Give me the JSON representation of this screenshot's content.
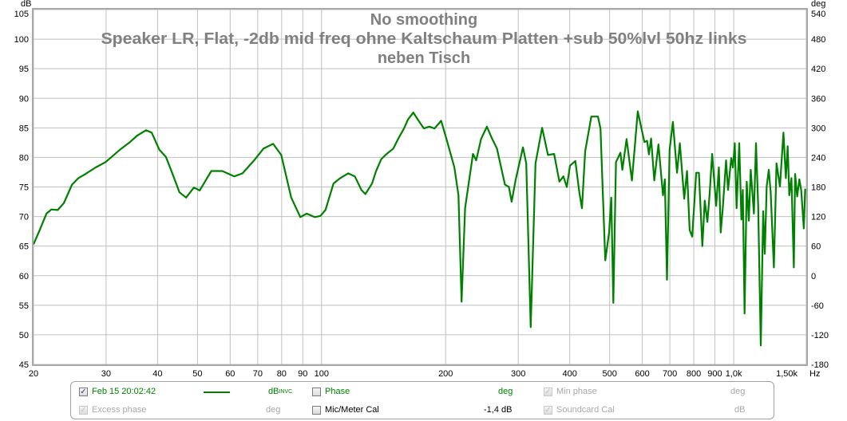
{
  "chart_data": {
    "type": "line",
    "title": [
      "No smoothing",
      "Speaker LR, Flat, -2db mid freq ohne Kaltschaum Platten +sub 50%lvl 50hz links",
      "neben Tisch"
    ],
    "xlabel": "Hz",
    "ylabel": "dB",
    "y2label": "deg",
    "xscale": "log",
    "xlim": [
      20,
      1500
    ],
    "ylim": [
      45,
      105
    ],
    "y2lim": [
      -180,
      540
    ],
    "grid": true,
    "x_ticks": [
      {
        "value": 20,
        "label": "20"
      },
      {
        "value": 30,
        "label": "30"
      },
      {
        "value": 40,
        "label": "40"
      },
      {
        "value": 50,
        "label": "50"
      },
      {
        "value": 60,
        "label": "60"
      },
      {
        "value": 70,
        "label": "70"
      },
      {
        "value": 80,
        "label": "80"
      },
      {
        "value": 90,
        "label": "90"
      },
      {
        "value": 100,
        "label": "100"
      },
      {
        "value": 200,
        "label": "200"
      },
      {
        "value": 300,
        "label": "300"
      },
      {
        "value": 400,
        "label": "400"
      },
      {
        "value": 500,
        "label": "500"
      },
      {
        "value": 600,
        "label": "600"
      },
      {
        "value": 700,
        "label": "700"
      },
      {
        "value": 800,
        "label": "800"
      },
      {
        "value": 900,
        "label": "900"
      },
      {
        "value": 1000,
        "label": "1,0k"
      },
      {
        "value": 1500,
        "label": "1,50k"
      }
    ],
    "y_ticks": [
      "105",
      "100",
      "95",
      "90",
      "85",
      "80",
      "75",
      "70",
      "65",
      "60",
      "55",
      "50",
      "45"
    ],
    "y2_ticks": [
      "540",
      "480",
      "420",
      "360",
      "300",
      "240",
      "180",
      "120",
      "60",
      "0",
      "-60",
      "-120",
      "-180"
    ],
    "series": [
      {
        "color": "#008000",
        "points": [
          [
            20,
            65.3
          ],
          [
            20.7,
            67.7
          ],
          [
            21.5,
            70.5
          ],
          [
            22.1,
            71.2
          ],
          [
            22.9,
            71.1
          ],
          [
            23.7,
            72.3
          ],
          [
            24.8,
            75.4
          ],
          [
            25.7,
            76.5
          ],
          [
            26.6,
            77.1
          ],
          [
            28.3,
            78.3
          ],
          [
            29.9,
            79.2
          ],
          [
            32.4,
            81.3
          ],
          [
            34.3,
            82.6
          ],
          [
            35.7,
            83.7
          ],
          [
            37.5,
            84.6
          ],
          [
            38.7,
            84.2
          ],
          [
            40.4,
            81.3
          ],
          [
            41.9,
            80.1
          ],
          [
            43.5,
            77.2
          ],
          [
            45.2,
            74.1
          ],
          [
            46.9,
            73.2
          ],
          [
            49.0,
            74.9
          ],
          [
            50.6,
            74.4
          ],
          [
            54.0,
            77.7
          ],
          [
            57.4,
            77.7
          ],
          [
            61.4,
            76.8
          ],
          [
            64.3,
            77.3
          ],
          [
            69.0,
            79.7
          ],
          [
            72.3,
            81.5
          ],
          [
            76.3,
            82.3
          ],
          [
            79.8,
            80.4
          ],
          [
            84.4,
            73.2
          ],
          [
            88.8,
            69.9
          ],
          [
            92.0,
            70.5
          ],
          [
            96.2,
            69.9
          ],
          [
            99.3,
            70.1
          ],
          [
            102.2,
            71.1
          ],
          [
            106.9,
            75.6
          ],
          [
            111.0,
            76.5
          ],
          [
            116.0,
            77.3
          ],
          [
            120.4,
            76.8
          ],
          [
            124.9,
            74.5
          ],
          [
            127.7,
            73.8
          ],
          [
            132.6,
            75.6
          ],
          [
            135.6,
            77.7
          ],
          [
            139.6,
            79.7
          ],
          [
            143.9,
            80.6
          ],
          [
            149.3,
            81.5
          ],
          [
            153.8,
            83.3
          ],
          [
            158.5,
            84.9
          ],
          [
            162.0,
            86.4
          ],
          [
            166.9,
            87.6
          ],
          [
            171.9,
            86.2
          ],
          [
            177.1,
            84.9
          ],
          [
            182.4,
            85.2
          ],
          [
            187.9,
            84.9
          ],
          [
            195.0,
            86.2
          ],
          [
            200.9,
            83.1
          ],
          [
            210.0,
            78.3
          ],
          [
            214.8,
            73.6
          ],
          [
            218.6,
            55.6
          ],
          [
            222.9,
            71.4
          ],
          [
            226.3,
            74.5
          ],
          [
            233.0,
            80.6
          ],
          [
            237.2,
            79.5
          ],
          [
            243.7,
            83.1
          ],
          [
            251.8,
            85.2
          ],
          [
            258.6,
            83.3
          ],
          [
            266.4,
            81.5
          ],
          [
            278.5,
            75.4
          ],
          [
            284.8,
            75.0
          ],
          [
            289.1,
            72.5
          ],
          [
            295.6,
            76.1
          ],
          [
            308.1,
            81.7
          ],
          [
            313.7,
            79.0
          ],
          [
            321.7,
            51.3
          ],
          [
            330.4,
            79.0
          ],
          [
            342.8,
            85.0
          ],
          [
            354.2,
            80.4
          ],
          [
            366.6,
            80.6
          ],
          [
            377.6,
            75.9
          ],
          [
            386.1,
            76.8
          ],
          [
            393.6,
            75.0
          ],
          [
            400.6,
            78.6
          ],
          [
            412.8,
            79.4
          ],
          [
            422.0,
            74.1
          ],
          [
            428.4,
            71.4
          ],
          [
            436.0,
            81.0
          ],
          [
            451.2,
            86.9
          ],
          [
            468.2,
            86.9
          ],
          [
            475.1,
            84.9
          ],
          [
            488.0,
            62.6
          ],
          [
            498.4,
            67.3
          ],
          [
            504.4,
            73.2
          ],
          [
            510.3,
            55.4
          ],
          [
            518.0,
            79.2
          ],
          [
            531.1,
            80.8
          ],
          [
            536.8,
            77.9
          ],
          [
            549.7,
            83.1
          ],
          [
            566.3,
            76.1
          ],
          [
            585.1,
            87.8
          ],
          [
            607.1,
            82.6
          ],
          [
            616.4,
            82.8
          ],
          [
            622.7,
            80.5
          ],
          [
            630.2,
            83.2
          ],
          [
            641.6,
            76.1
          ],
          [
            656.8,
            82.2
          ],
          [
            673.7,
            73.6
          ],
          [
            680.6,
            76.3
          ],
          [
            688.8,
            59.3
          ],
          [
            699.1,
            81.3
          ],
          [
            711.8,
            86.0
          ],
          [
            728.7,
            77.4
          ],
          [
            739.9,
            82.4
          ],
          [
            758.6,
            73.0
          ],
          [
            770.3,
            77.7
          ],
          [
            781.7,
            67.7
          ],
          [
            793.2,
            66.6
          ],
          [
            811.0,
            77.4
          ],
          [
            823.4,
            77.4
          ],
          [
            839.3,
            65.0
          ],
          [
            850.6,
            72.7
          ],
          [
            863.0,
            69.1
          ],
          [
            873.6,
            73.6
          ],
          [
            886.6,
            80.6
          ],
          [
            906.6,
            71.8
          ],
          [
            920.4,
            78.3
          ],
          [
            929.8,
            67.3
          ],
          [
            941.0,
            71.6
          ],
          [
            958.0,
            79.5
          ],
          [
            969.0,
            74.5
          ],
          [
            986.4,
            79.9
          ],
          [
            995.4,
            78.3
          ],
          [
            1005.9,
            82.4
          ],
          [
            1016.4,
            71.4
          ],
          [
            1031.5,
            82.4
          ],
          [
            1044.0,
            69.5
          ],
          [
            1052.0,
            74.5
          ],
          [
            1062.7,
            53.6
          ],
          [
            1075.5,
            75.9
          ],
          [
            1088.1,
            69.3
          ],
          [
            1099.8,
            77.9
          ],
          [
            1119.7,
            70.5
          ],
          [
            1132.5,
            82.4
          ],
          [
            1146.2,
            72.0
          ],
          [
            1163.2,
            48.2
          ],
          [
            1178.9,
            70.9
          ],
          [
            1189.5,
            63.7
          ],
          [
            1202.2,
            75.1
          ],
          [
            1216.2,
            77.9
          ],
          [
            1229.4,
            74.1
          ],
          [
            1251.4,
            61.4
          ],
          [
            1270.0,
            79.0
          ],
          [
            1294.6,
            75.1
          ],
          [
            1320.2,
            84.2
          ],
          [
            1338.0,
            76.5
          ],
          [
            1351.8,
            81.9
          ],
          [
            1363.9,
            73.6
          ],
          [
            1380.4,
            76.5
          ],
          [
            1399.0,
            61.4
          ],
          [
            1409.0,
            77.2
          ],
          [
            1425.9,
            73.4
          ],
          [
            1443.1,
            76.3
          ],
          [
            1458.0,
            74.5
          ],
          [
            1479.3,
            68.0
          ],
          [
            1490.6,
            74.7
          ]
        ]
      }
    ]
  },
  "legend": {
    "row1": {
      "measurement": {
        "label": "Feb 15 20:02:42",
        "checked": true,
        "unit": "dB",
        "unit_sup": "INVC",
        "color": "#008000"
      },
      "phase": {
        "label": "Phase",
        "checked": false,
        "unit": "deg"
      },
      "min_phase": {
        "label": "Min phase",
        "checked": true,
        "enabled": false,
        "unit": "deg"
      }
    },
    "row2": {
      "excess_phase": {
        "label": "Excess phase",
        "checked": true,
        "enabled": false,
        "unit": "deg"
      },
      "mic_cal": {
        "label": "Mic/Meter Cal",
        "checked": false,
        "value": "-1,4 dB"
      },
      "soundcard_cal": {
        "label": "Soundcard Cal",
        "checked": true,
        "enabled": false,
        "unit": "dB"
      }
    },
    "check_glyph": "✓"
  }
}
